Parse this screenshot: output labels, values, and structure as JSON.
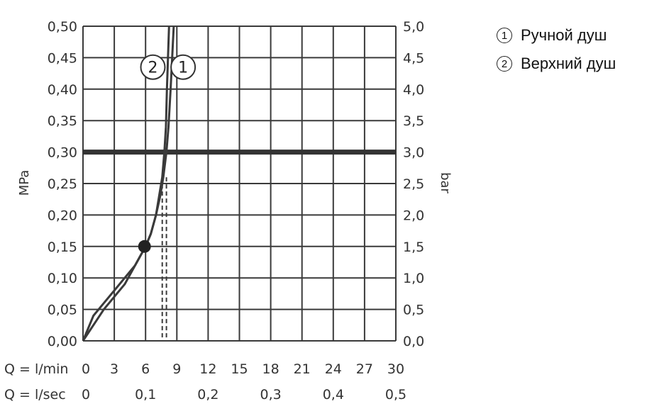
{
  "chart_data": {
    "type": "line",
    "ylabel_left": "MPa",
    "ylabel_right": "bar",
    "x_row_label_lmin": "Q = l/min",
    "x_row_label_lsec": "Q = l/sec",
    "xlim": [
      0,
      30
    ],
    "ylim": [
      0,
      0.5
    ],
    "y_ticks_left": [
      "0,00",
      "0,05",
      "0,10",
      "0,15",
      "0,20",
      "0,25",
      "0,30",
      "0,35",
      "0,40",
      "0,45",
      "0,50"
    ],
    "y_ticks_right": [
      "0,0",
      "0,5",
      "1,0",
      "1,5",
      "2,0",
      "2,5",
      "3,0",
      "3,5",
      "4,0",
      "4,5",
      "5,0"
    ],
    "x_ticks_lmin": [
      "0",
      "3",
      "6",
      "9",
      "12",
      "15",
      "18",
      "21",
      "24",
      "27",
      "30"
    ],
    "x_ticks_lsec": [
      {
        "x": 0,
        "label": "0"
      },
      {
        "x": 6,
        "label": "0,1"
      },
      {
        "x": 12,
        "label": "0,2"
      },
      {
        "x": 18,
        "label": "0,3"
      },
      {
        "x": 24,
        "label": "0,4"
      },
      {
        "x": 30,
        "label": "0,5"
      }
    ],
    "reference_line": {
      "y": 0.3
    },
    "marker_point": {
      "x": 5.9,
      "y": 0.15
    },
    "series": [
      {
        "name": "1",
        "x": [
          0,
          1,
          2,
          3,
          4,
          5,
          6,
          6.5,
          7,
          7.4,
          7.7,
          8.0,
          8.2,
          8.4,
          8.55,
          8.7
        ],
        "y": [
          0,
          0.04,
          0.06,
          0.08,
          0.1,
          0.12,
          0.15,
          0.17,
          0.2,
          0.23,
          0.26,
          0.3,
          0.34,
          0.4,
          0.45,
          0.5
        ]
      },
      {
        "name": "2",
        "x": [
          0,
          1,
          2,
          3,
          4,
          5,
          6,
          6.5,
          7,
          7.3,
          7.6,
          7.8,
          7.95,
          8.05,
          8.15,
          8.25
        ],
        "y": [
          0,
          0.025,
          0.05,
          0.07,
          0.09,
          0.12,
          0.15,
          0.17,
          0.2,
          0.23,
          0.26,
          0.3,
          0.34,
          0.4,
          0.45,
          0.5
        ]
      }
    ],
    "dashed_drops": [
      {
        "x": 7.6,
        "y": 0.26
      },
      {
        "x": 8.0,
        "y": 0.26
      }
    ],
    "curve_labels": [
      {
        "text": "2",
        "x": 6.7,
        "y": 0.435
      },
      {
        "text": "1",
        "x": 9.6,
        "y": 0.435
      }
    ],
    "grid": true
  },
  "legend": {
    "items": [
      {
        "marker": "1",
        "label": "Ручной душ"
      },
      {
        "marker": "2",
        "label": "Верхний душ"
      }
    ]
  },
  "colors": {
    "line": "#3a3a3a",
    "grid": "#3a3a3a",
    "text": "#333333"
  }
}
